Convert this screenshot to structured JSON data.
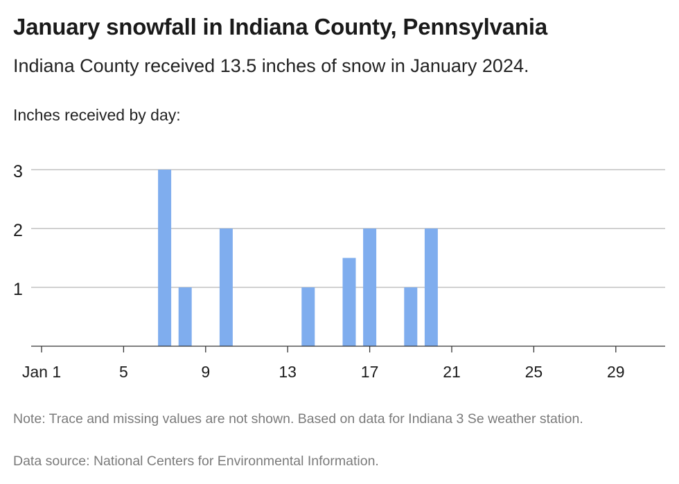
{
  "header": {
    "title": "January snowfall in Indiana County, Pennsylvania",
    "subtitle": "Indiana County received 13.5 inches of snow in January 2024.",
    "ylabel": "Inches received by day:"
  },
  "footer": {
    "note": "Note: Trace and missing values are not shown. Based on data for Indiana 3 Se weather station.",
    "source": "Data source: National Centers for Environmental Information."
  },
  "chart_data": {
    "type": "bar",
    "x": [
      7,
      8,
      10,
      14,
      16,
      17,
      19,
      20
    ],
    "values": [
      3,
      1,
      2,
      1,
      1.5,
      2,
      1,
      2
    ],
    "x_ticks": [
      1,
      5,
      9,
      13,
      17,
      21,
      25,
      29
    ],
    "x_tick_labels": [
      "Jan 1",
      "5",
      "9",
      "13",
      "17",
      "21",
      "25",
      "29"
    ],
    "xlim": [
      1,
      31
    ],
    "y_ticks": [
      1,
      2,
      3
    ],
    "ylim": [
      0,
      3
    ],
    "grid": true,
    "bar_color": "#7fadee"
  }
}
